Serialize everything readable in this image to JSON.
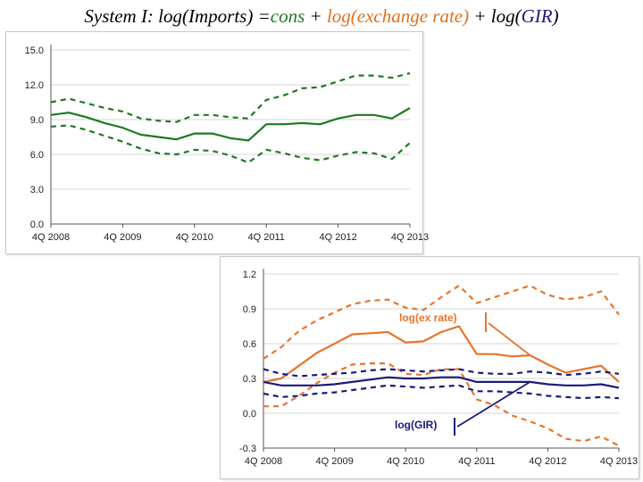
{
  "slide": {
    "title_parts": [
      {
        "text": "System I: log(Imports) =",
        "color": "#000000"
      },
      {
        "text": "cons",
        "color": "#1f7a1f"
      },
      {
        "text": " + ",
        "color": "#000000"
      },
      {
        "text": "log(exchange rate)",
        "color": "#e07020"
      },
      {
        "text": " + log(",
        "color": "#000000"
      },
      {
        "text": "GIR",
        "color": "#1a1a7a"
      },
      {
        "text": ")",
        "color": "#000000"
      }
    ]
  },
  "chart_data": [
    {
      "type": "line",
      "title": "",
      "xlabel": "",
      "ylabel": "",
      "x_ticks": [
        "4Q 2008",
        "4Q 2009",
        "4Q 2010",
        "4Q 2011",
        "4Q 2012",
        "4Q 2013"
      ],
      "y_ticks": [
        "15.0",
        "12.0",
        "9.0",
        "6.0",
        "3.0",
        "0.0"
      ],
      "ylim": [
        0,
        15
      ],
      "grid": "horizontal",
      "x": [
        "4Q 2008",
        "1Q 2009",
        "2Q 2009",
        "3Q 2009",
        "4Q 2009",
        "1Q 2010",
        "2Q 2010",
        "3Q 2010",
        "4Q 2010",
        "1Q 2011",
        "2Q 2011",
        "3Q 2011",
        "4Q 2011",
        "1Q 2012",
        "2Q 2012",
        "3Q 2012",
        "4Q 2012",
        "1Q 2013",
        "2Q 2013",
        "3Q 2013",
        "4Q 2013"
      ],
      "series": [
        {
          "style": "solid",
          "color": "#1f7a1f",
          "values": [
            9.4,
            9.6,
            9.2,
            8.7,
            8.3,
            7.7,
            7.5,
            7.3,
            7.8,
            7.8,
            7.4,
            7.2,
            8.6,
            8.6,
            8.7,
            8.6,
            9.1,
            9.4,
            9.4,
            9.1,
            10.0
          ]
        },
        {
          "style": "dashed",
          "color": "#1f7a1f",
          "values": [
            10.5,
            10.8,
            10.4,
            10.0,
            9.7,
            9.1,
            8.9,
            8.8,
            9.4,
            9.4,
            9.2,
            9.1,
            10.7,
            11.1,
            11.7,
            11.8,
            12.3,
            12.8,
            12.8,
            12.6,
            13.0
          ]
        },
        {
          "style": "dashed",
          "color": "#1f7a1f",
          "values": [
            8.4,
            8.5,
            8.1,
            7.6,
            7.1,
            6.5,
            6.1,
            6.0,
            6.4,
            6.3,
            5.9,
            5.3,
            6.4,
            6.1,
            5.7,
            5.5,
            5.9,
            6.2,
            6.1,
            5.6,
            7.0
          ]
        }
      ]
    },
    {
      "type": "line",
      "title": "",
      "xlabel": "",
      "ylabel": "",
      "x_ticks": [
        "4Q 2008",
        "4Q 2009",
        "4Q 2010",
        "4Q 2011",
        "4Q 2012",
        "4Q 2013"
      ],
      "y_ticks": [
        "1.2",
        "0.9",
        "0.6",
        "0.3",
        "0.0",
        "-0.3"
      ],
      "ylim": [
        -0.3,
        1.2
      ],
      "grid": "horizontal",
      "x": [
        "4Q 2008",
        "1Q 2009",
        "2Q 2009",
        "3Q 2009",
        "4Q 2009",
        "1Q 2010",
        "2Q 2010",
        "3Q 2010",
        "4Q 2010",
        "1Q 2011",
        "2Q 2011",
        "3Q 2011",
        "4Q 2011",
        "1Q 2012",
        "2Q 2012",
        "3Q 2012",
        "4Q 2012",
        "1Q 2013",
        "2Q 2013",
        "3Q 2013",
        "4Q 2013"
      ],
      "series": [
        {
          "style": "solid",
          "color": "#e8742c",
          "values": [
            0.27,
            0.3,
            0.41,
            0.52,
            0.6,
            0.68,
            0.69,
            0.7,
            0.61,
            0.62,
            0.7,
            0.75,
            0.51,
            0.51,
            0.49,
            0.5,
            0.42,
            0.35,
            0.38,
            0.41,
            0.27
          ]
        },
        {
          "style": "dashed",
          "color": "#e8742c",
          "values": [
            0.47,
            0.57,
            0.71,
            0.8,
            0.87,
            0.94,
            0.97,
            0.98,
            0.91,
            0.89,
            1.0,
            1.1,
            0.95,
            1.0,
            1.05,
            1.1,
            1.02,
            0.98,
            1.0,
            1.05,
            0.85
          ]
        },
        {
          "style": "dashed",
          "color": "#e8742c",
          "values": [
            0.06,
            0.06,
            0.15,
            0.26,
            0.35,
            0.42,
            0.43,
            0.43,
            0.34,
            0.33,
            0.38,
            0.38,
            0.12,
            0.07,
            -0.02,
            -0.07,
            -0.13,
            -0.22,
            -0.24,
            -0.2,
            -0.28
          ]
        },
        {
          "style": "solid",
          "color": "#1a1a7a",
          "values": [
            0.27,
            0.24,
            0.24,
            0.24,
            0.25,
            0.27,
            0.29,
            0.31,
            0.3,
            0.3,
            0.31,
            0.31,
            0.27,
            0.27,
            0.27,
            0.27,
            0.25,
            0.24,
            0.24,
            0.25,
            0.22
          ]
        },
        {
          "style": "dashed",
          "color": "#1a1a7a",
          "values": [
            0.38,
            0.34,
            0.32,
            0.33,
            0.34,
            0.35,
            0.37,
            0.38,
            0.37,
            0.36,
            0.37,
            0.38,
            0.35,
            0.34,
            0.34,
            0.36,
            0.35,
            0.33,
            0.34,
            0.36,
            0.34
          ]
        },
        {
          "style": "dashed",
          "color": "#1a1a7a",
          "values": [
            0.17,
            0.14,
            0.15,
            0.17,
            0.18,
            0.2,
            0.22,
            0.24,
            0.23,
            0.22,
            0.23,
            0.24,
            0.19,
            0.19,
            0.18,
            0.17,
            0.15,
            0.14,
            0.13,
            0.14,
            0.13
          ]
        }
      ],
      "annotations": [
        {
          "text": "log(ex rate)",
          "color": "#e8742c"
        },
        {
          "text": "log(GIR)",
          "color": "#1a1a7a"
        }
      ]
    }
  ]
}
